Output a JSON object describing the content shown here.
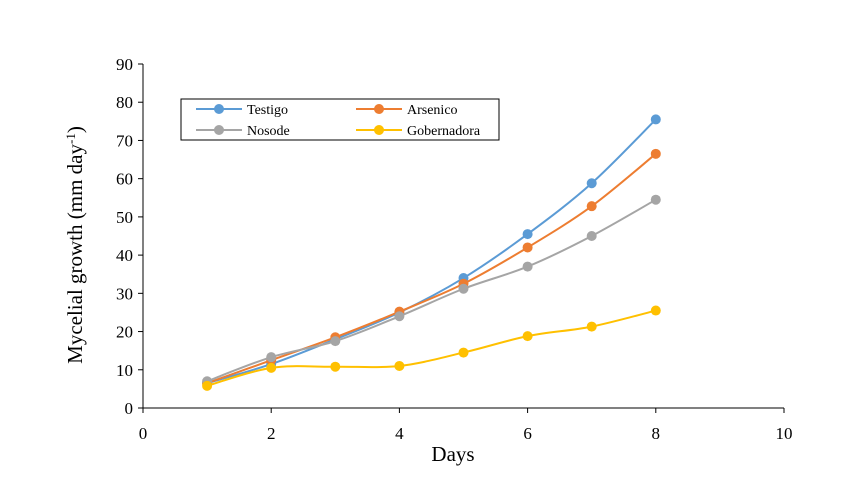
{
  "chart_data": {
    "type": "line",
    "xlabel": "Days",
    "ylabel": "Mycelial growth (mm day",
    "ylabel_superscript": "-1",
    "ylabel_close": ")",
    "xlim": [
      0,
      10
    ],
    "ylim": [
      0,
      90
    ],
    "xticks": [
      "0",
      "2",
      "4",
      "6",
      "8",
      "10"
    ],
    "yticks": [
      "0",
      "10",
      "20",
      "30",
      "40",
      "50",
      "60",
      "70",
      "80",
      "90"
    ],
    "grid": false,
    "legend_placement": "top-left",
    "x": [
      1,
      2,
      3,
      4,
      5,
      6,
      7,
      8
    ],
    "series": [
      {
        "name": "Testigo",
        "color": "#5b9bd5",
        "values": [
          6.5,
          11.5,
          18,
          25,
          34,
          45.5,
          58.8,
          75.5
        ]
      },
      {
        "name": "Arsenico",
        "color": "#ed7d31",
        "values": [
          6.5,
          12.5,
          18.5,
          25.2,
          32.5,
          42,
          52.8,
          66.5
        ]
      },
      {
        "name": "Nosode",
        "color": "#a5a5a5",
        "values": [
          7,
          13.3,
          17.5,
          24,
          31.2,
          37,
          45,
          54.5
        ]
      },
      {
        "name": "Gobernadora",
        "color": "#ffc000",
        "values": [
          5.8,
          10.5,
          10.8,
          11,
          14.5,
          18.8,
          21.3,
          25.5
        ]
      }
    ]
  }
}
